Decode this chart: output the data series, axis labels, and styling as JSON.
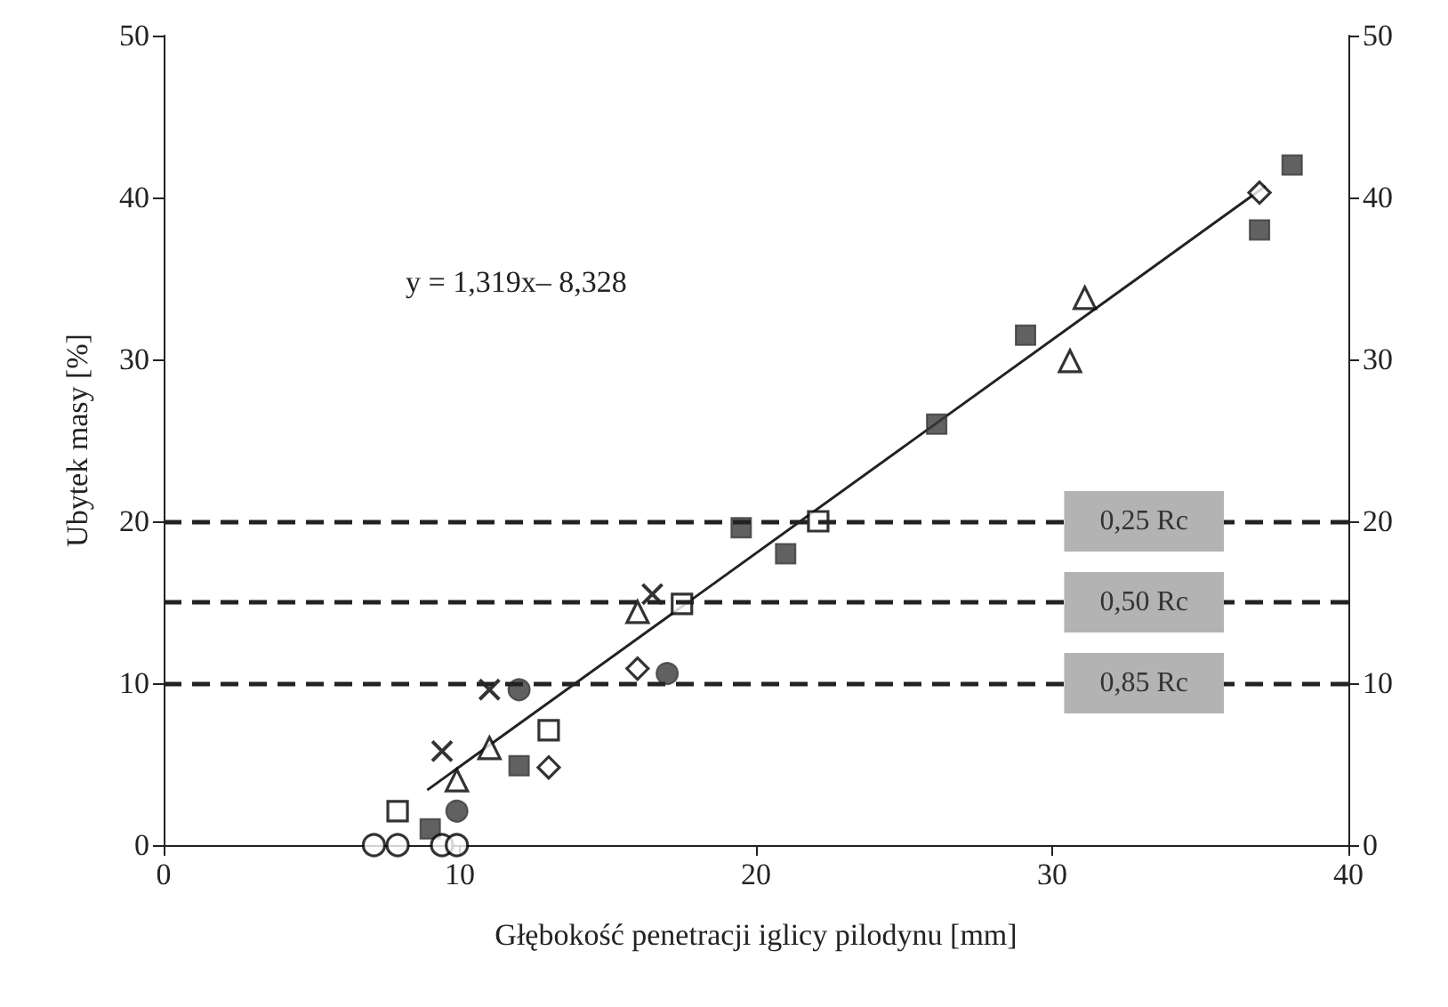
{
  "chart_data": {
    "type": "scatter",
    "xlabel": "Głębokość penetracji iglicy pilodynu [mm]",
    "ylabel": "Ubytek masy [%]",
    "xlim": [
      0,
      40
    ],
    "xticks": [
      0,
      10,
      20,
      30,
      40
    ],
    "ylim": [
      0,
      50
    ],
    "yticks": [
      0,
      10,
      20,
      30,
      40,
      50
    ],
    "y2lim": [
      0,
      50
    ],
    "y2ticks": [
      0,
      10,
      20,
      30,
      40,
      50
    ],
    "grid": false,
    "annotations": [
      "y = 1,319x– 8,328"
    ],
    "ref_lines": [
      {
        "axis": "y",
        "value": 20,
        "label": "0,25 Rc",
        "color": "#222222",
        "line_style": "dashed"
      },
      {
        "axis": "y",
        "value": 15,
        "label": "0,50 Rc",
        "color": "#222222",
        "line_style": "dashed"
      },
      {
        "axis": "y",
        "value": 10,
        "label": "0,85 Rc",
        "color": "#222222",
        "line_style": "dashed"
      }
    ],
    "series": [
      {
        "marker": "square",
        "color": "#3a3a3a",
        "x": [
          9.0,
          12.0,
          19.5,
          21.0,
          26.1,
          29.1,
          37.0,
          38.1
        ],
        "values": [
          1.0,
          4.9,
          19.6,
          18.0,
          26.0,
          31.5,
          38.0,
          42.0
        ]
      },
      {
        "marker": "square",
        "color": "#000000",
        "x": [
          7.9,
          13.0,
          17.5,
          22.1
        ],
        "values": [
          2.1,
          7.1,
          14.9,
          20.0
        ]
      },
      {
        "marker": "triangle",
        "color": "#000000",
        "x": [
          9.9,
          11.0,
          16.0,
          30.6,
          31.1
        ],
        "values": [
          4.0,
          6.0,
          14.4,
          29.9,
          33.8
        ]
      },
      {
        "marker": "diamond",
        "color": "#000000",
        "x": [
          13.0,
          16.0,
          37.0
        ],
        "values": [
          4.8,
          10.9,
          40.3
        ]
      },
      {
        "marker": "cross",
        "color": "#000000",
        "x": [
          9.4,
          11.0,
          16.5
        ],
        "values": [
          5.8,
          9.6,
          15.5
        ]
      },
      {
        "marker": "circle",
        "color": "#3a3a3a",
        "x": [
          9.9,
          12.0,
          17.0
        ],
        "values": [
          2.1,
          9.6,
          10.6
        ]
      },
      {
        "marker": "circle",
        "color": "#000000",
        "x": [
          7.1,
          7.9,
          9.4,
          9.9
        ],
        "values": [
          0,
          0,
          0,
          0
        ]
      },
      {
        "type": "line",
        "marker": "none",
        "color": "#222222",
        "x": [
          8.9,
          37.2
        ],
        "values": [
          3.4,
          40.7
        ]
      }
    ]
  }
}
